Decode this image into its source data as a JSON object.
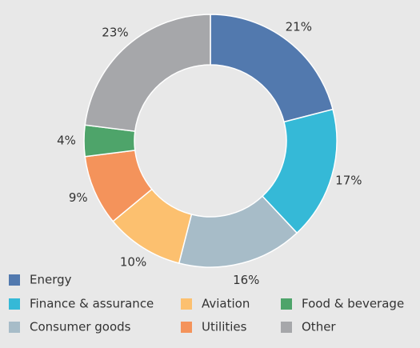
{
  "chart_data": {
    "type": "pie",
    "categories": [
      "Energy",
      "Finance & assurance",
      "Consumer goods",
      "Aviation",
      "Utilities",
      "Food & beverage",
      "Other"
    ],
    "values": [
      21,
      17,
      16,
      10,
      9,
      4,
      23
    ],
    "value_labels": [
      "21%",
      "17%",
      "16%",
      "10%",
      "9%",
      "4%",
      "23%"
    ],
    "colors": [
      "#5279ae",
      "#35b9d7",
      "#a7bcc8",
      "#fcc06f",
      "#f4935b",
      "#4ea46a",
      "#a6a7aa"
    ]
  }
}
